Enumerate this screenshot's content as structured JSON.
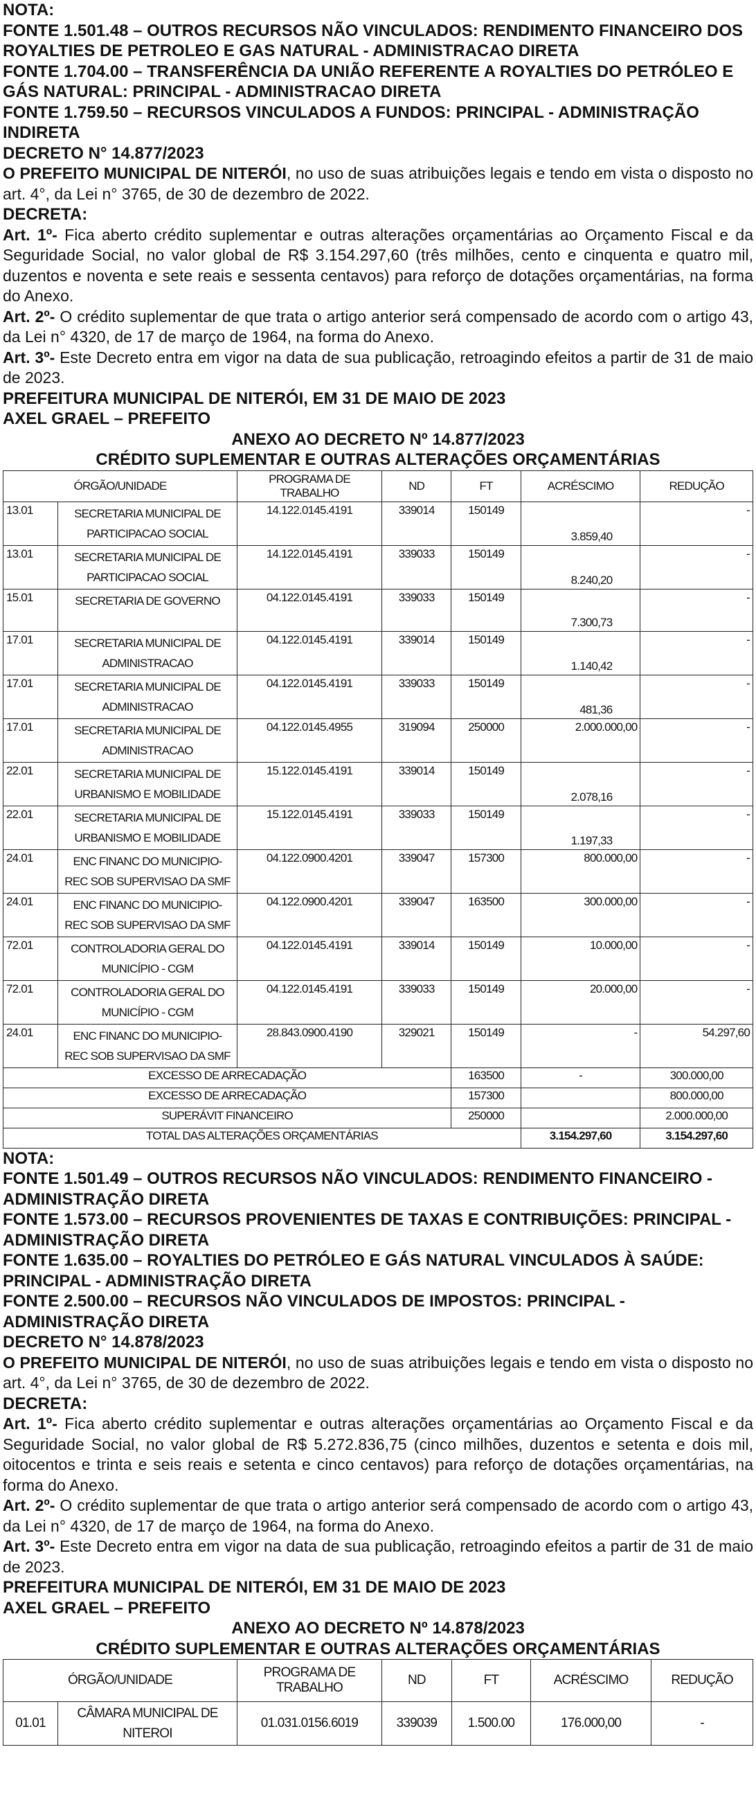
{
  "top": {
    "nota": "NOTA:",
    "fontes": [
      "FONTE 1.501.48 – OUTROS RECURSOS NÃO VINCULADOS: RENDIMENTO FINANCEIRO DOS ROYALTIES DE PETROLEO E GAS NATURAL - ADMINISTRACAO DIRETA",
      "FONTE 1.704.00 – TRANSFERÊNCIA DA UNIÃO REFERENTE A ROYALTIES DO PETRÓLEO E GÁS NATURAL: PRINCIPAL - ADMINISTRACAO DIRETA",
      "FONTE 1.759.50 – RECURSOS VINCULADOS A FUNDOS: PRINCIPAL - ADMINISTRAÇÃO INDIRETA"
    ]
  },
  "decree1": {
    "title": "DECRETO N° 14.877/2023",
    "intro_bold": "O PREFEITO MUNICIPAL DE NITERÓI",
    "intro_rest": ", no uso de suas atribuições legais e tendo em vista o disposto no art. 4°, da Lei n° 3765, de 30 de dezembro de 2022.",
    "decreta": "DECRETA:",
    "art1_label": "Art. 1º-",
    "art1": " Fica aberto crédito suplementar e outras alterações orçamentárias ao Orçamento Fiscal e da Seguridade Social, no valor global de R$ 3.154.297,60 (três milhões, cento e cinquenta e quatro mil, duzentos e noventa e sete reais e sessenta centavos) para reforço de dotações orçamentárias, na forma do Anexo.",
    "art2_label": "Art. 2º-",
    "art2": " O crédito suplementar de que trata o artigo anterior será compensado de acordo com o artigo 43, da Lei n° 4320, de 17 de março de 1964, na forma do Anexo.",
    "art3_label": "Art. 3º-",
    "art3": " Este Decreto entra em vigor na data de sua publicação, retroagindo efeitos a partir de 31 de maio de 2023.",
    "place": "PREFEITURA MUNICIPAL DE NITERÓI, EM 31 DE MAIO DE 2023",
    "signer": "AXEL GRAEL – PREFEITO",
    "annex_title": "ANEXO AO DECRETO Nº 14.877/2023",
    "annex_subtitle": "CRÉDITO SUPLEMENTAR E OUTRAS ALTERAÇÕES ORÇAMENTÁRIAS",
    "headers": [
      "ÓRGÃO/UNIDADE",
      "PROGRAMA DE TRABALHO",
      "ND",
      "FT",
      "ACRÉSCIMO",
      "REDUÇÃO"
    ],
    "rows": [
      {
        "code": "13.01",
        "unit": "SECRETARIA MUNICIPAL DE PARTICIPACAO SOCIAL",
        "prog": "14.122.0145.4191",
        "nd": "339014",
        "ft": "150149",
        "acr": "3.859,40",
        "red": "-",
        "low": true
      },
      {
        "code": "13.01",
        "unit": "SECRETARIA MUNICIPAL DE PARTICIPACAO SOCIAL",
        "prog": "14.122.0145.4191",
        "nd": "339033",
        "ft": "150149",
        "acr": "8.240,20",
        "red": "-",
        "low": true
      },
      {
        "code": "15.01",
        "unit": "SECRETARIA DE GOVERNO",
        "prog": "04.122.0145.4191",
        "nd": "339033",
        "ft": "150149",
        "acr": "7.300,73",
        "red": "-",
        "low": true
      },
      {
        "code": "17.01",
        "unit": "SECRETARIA MUNICIPAL DE ADMINISTRACAO",
        "prog": "04.122.0145.4191",
        "nd": "339014",
        "ft": "150149",
        "acr": "1.140,42",
        "red": "-",
        "low": true
      },
      {
        "code": "17.01",
        "unit": "SECRETARIA MUNICIPAL DE ADMINISTRACAO",
        "prog": "04.122.0145.4191",
        "nd": "339033",
        "ft": "150149",
        "acr": "481,36",
        "red": "-",
        "low": true
      },
      {
        "code": "17.01",
        "unit": "SECRETARIA MUNICIPAL DE ADMINISTRACAO",
        "prog": "04.122.0145.4955",
        "nd": "319094",
        "ft": "250000",
        "acr": "2.000.000,00",
        "red": "-"
      },
      {
        "code": "22.01",
        "unit": "SECRETARIA MUNICIPAL DE URBANISMO E MOBILIDADE",
        "prog": "15.122.0145.4191",
        "nd": "339014",
        "ft": "150149",
        "acr": "2.078,16",
        "red": "-",
        "low": true
      },
      {
        "code": "22.01",
        "unit": "SECRETARIA MUNICIPAL DE URBANISMO E MOBILIDADE",
        "prog": "15.122.0145.4191",
        "nd": "339033",
        "ft": "150149",
        "acr": "1.197,33",
        "red": "-",
        "low": true
      },
      {
        "code": "24.01",
        "unit": "ENC FINANC DO MUNICIPIO- REC SOB SUPERVISAO DA SMF",
        "prog": "04.122.0900.4201",
        "nd": "339047",
        "ft": "157300",
        "acr": "800.000,00",
        "red": "-"
      },
      {
        "code": "24.01",
        "unit": "ENC FINANC DO MUNICIPIO- REC SOB SUPERVISAO DA SMF",
        "prog": "04.122.0900.4201",
        "nd": "339047",
        "ft": "163500",
        "acr": "300.000,00",
        "red": "-"
      },
      {
        "code": "72.01",
        "unit": "CONTROLADORIA GERAL DO MUNICÍPIO - CGM",
        "prog": "04.122.0145.4191",
        "nd": "339014",
        "ft": "150149",
        "acr": "10.000,00",
        "red": "-"
      },
      {
        "code": "72.01",
        "unit": "CONTROLADORIA GERAL DO MUNICÍPIO - CGM",
        "prog": "04.122.0145.4191",
        "nd": "339033",
        "ft": "150149",
        "acr": "20.000,00",
        "red": "-"
      },
      {
        "code": "24.01",
        "unit": "ENC FINANC DO MUNICIPIO- REC SOB SUPERVISAO DA SMF",
        "prog": "28.843.0900.4190",
        "nd": "329021",
        "ft": "150149",
        "acr": "-",
        "red": "54.297,60"
      }
    ],
    "summary": [
      {
        "label": "EXCESSO DE ARRECADAÇÃO",
        "ft": "163500",
        "acr": "-",
        "red": "300.000,00"
      },
      {
        "label": "EXCESSO DE ARRECADAÇÃO",
        "ft": "157300",
        "acr": "",
        "red": "800.000,00"
      },
      {
        "label": "SUPERÁVIT FINANCEIRO",
        "ft": "250000",
        "acr": "",
        "red": "2.000.000,00"
      }
    ],
    "total": {
      "label": "TOTAL DAS ALTERAÇÕES ORÇAMENTÁRIAS",
      "acr": "3.154.297,60",
      "red": "3.154.297,60"
    }
  },
  "middle": {
    "nota": "NOTA:",
    "fontes": [
      "FONTE 1.501.49 – OUTROS RECURSOS NÃO VINCULADOS: RENDIMENTO FINANCEIRO - ADMINISTRAÇÃO DIRETA",
      "FONTE 1.573.00 – RECURSOS PROVENIENTES DE TAXAS E CONTRIBUIÇÕES: PRINCIPAL - ADMINISTRAÇÃO DIRETA",
      "FONTE 1.635.00 – ROYALTIES DO PETRÓLEO E GÁS NATURAL VINCULADOS À SAÚDE: PRINCIPAL - ADMINISTRAÇÃO DIRETA",
      "FONTE 2.500.00 – RECURSOS NÃO VINCULADOS DE IMPOSTOS: PRINCIPAL - ADMINISTRAÇÃO DIRETA"
    ]
  },
  "decree2": {
    "title": "DECRETO N° 14.878/2023",
    "intro_bold": "O PREFEITO MUNICIPAL DE NITERÓI",
    "intro_rest": ", no uso de suas atribuições legais e tendo em vista o disposto no art. 4°, da Lei n° 3765, de 30 de dezembro de 2022.",
    "decreta": "DECRETA:",
    "art1_label": "Art. 1º-",
    "art1": " Fica aberto crédito suplementar e outras alterações orçamentárias ao Orçamento Fiscal e da Seguridade Social, no valor global de R$ 5.272.836,75 (cinco milhões, duzentos e setenta e dois mil, oitocentos e trinta e seis reais e setenta e cinco centavos) para reforço de dotações orçamentárias, na forma do Anexo.",
    "art2_label": "Art. 2º-",
    "art2": " O crédito suplementar de que trata o artigo anterior será compensado de acordo com o artigo 43, da Lei n° 4320, de 17 de março de 1964, na forma do Anexo.",
    "art3_label": "Art. 3º-",
    "art3": " Este Decreto entra em vigor na data de sua publicação, retroagindo efeitos a partir de 31 de maio de 2023.",
    "place": "PREFEITURA MUNICIPAL DE NITERÓI, EM 31 DE MAIO DE 2023",
    "signer": "AXEL GRAEL – PREFEITO",
    "annex_title": "ANEXO AO DECRETO Nº 14.878/2023",
    "annex_subtitle": "CRÉDITO SUPLEMENTAR E OUTRAS ALTERAÇÕES ORÇAMENTÁRIAS",
    "headers": [
      "ÓRGÃO/UNIDADE",
      "PROGRAMA DE TRABALHO",
      "ND",
      "FT",
      "ACRÉSCIMO",
      "REDUÇÃO"
    ],
    "rows": [
      {
        "code": "01.01",
        "unit": "CÂMARA MUNICIPAL DE NITEROI",
        "prog": "01.031.0156.6019",
        "nd": "339039",
        "ft": "1.500.00",
        "acr": "176.000,00",
        "red": "-"
      }
    ]
  }
}
